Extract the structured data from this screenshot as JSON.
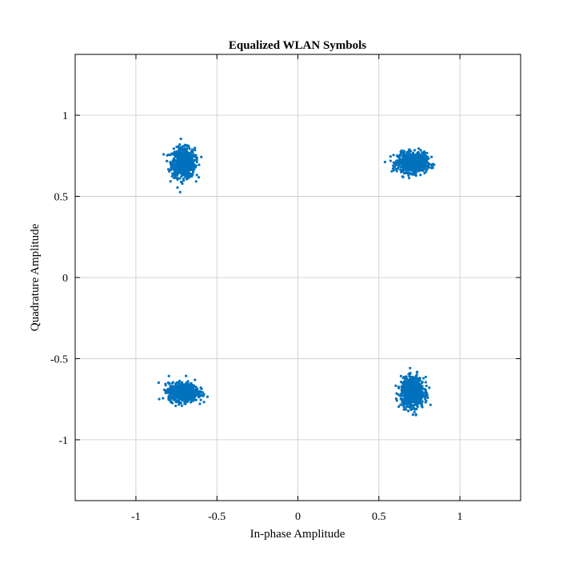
{
  "chart_data": {
    "type": "scatter",
    "title": "Equalized WLAN Symbols",
    "xlabel": "In-phase Amplitude",
    "ylabel": "Quadrature Amplitude",
    "xlim": [
      -1.375,
      1.375
    ],
    "ylim": [
      -1.375,
      1.375
    ],
    "xticks": [
      -1,
      -0.5,
      0,
      0.5,
      1
    ],
    "yticks": [
      -1,
      -0.5,
      0,
      0.5,
      1
    ],
    "xtick_labels": [
      "-1",
      "-0.5",
      "0",
      "0.5",
      "1"
    ],
    "ytick_labels": [
      "-1",
      "-0.5",
      "0",
      "0.5",
      "1"
    ],
    "grid": true,
    "legend": "none",
    "marker_color": "#0072BD",
    "clusters": [
      {
        "center_x": -0.707,
        "center_y": 0.707,
        "approx_points": 800,
        "spread_x": 0.035,
        "spread_y": 0.045
      },
      {
        "center_x": 0.707,
        "center_y": 0.707,
        "approx_points": 800,
        "spread_x": 0.045,
        "spread_y": 0.03
      },
      {
        "center_x": -0.707,
        "center_y": -0.707,
        "approx_points": 800,
        "spread_x": 0.045,
        "spread_y": 0.028
      },
      {
        "center_x": 0.707,
        "center_y": -0.707,
        "approx_points": 800,
        "spread_x": 0.035,
        "spread_y": 0.045
      }
    ]
  }
}
